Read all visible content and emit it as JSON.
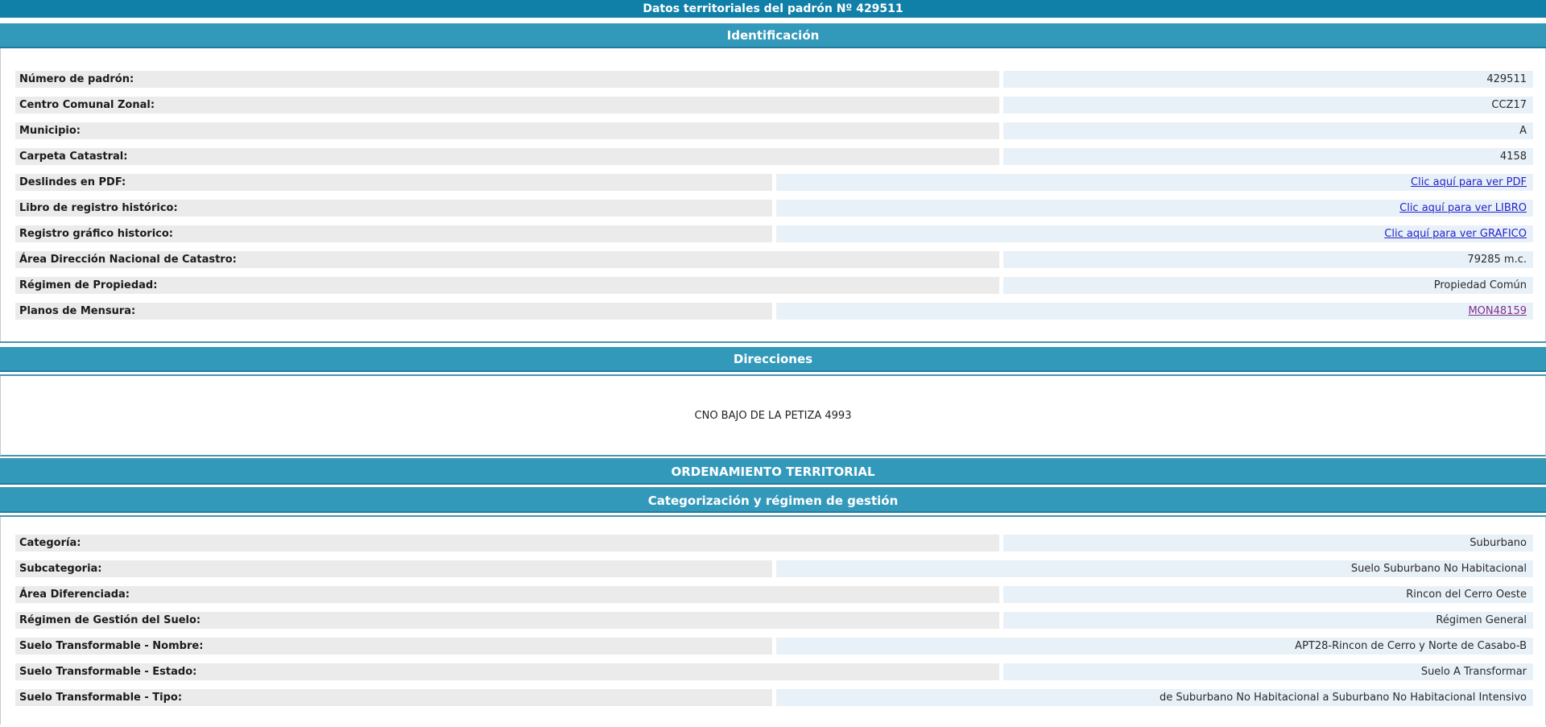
{
  "page": {
    "title": "Datos territoriales del padrón Nº 429511"
  },
  "sections": {
    "identificacion": {
      "header": "Identificación",
      "rows": [
        {
          "label": "Número de padrón:",
          "value": "429511",
          "type": "text"
        },
        {
          "label": "Centro Comunal Zonal:",
          "value": "CCZ17",
          "type": "text"
        },
        {
          "label": "Municipio:",
          "value": "A",
          "type": "text"
        },
        {
          "label": "Carpeta Catastral:",
          "value": "4158",
          "type": "text"
        },
        {
          "label": "Deslindes en PDF:",
          "value": "Clic aquí para ver PDF",
          "type": "link"
        },
        {
          "label": "Libro de registro histórico:",
          "value": "Clic aquí para ver LIBRO",
          "type": "link"
        },
        {
          "label": "Registro gráfico historico:",
          "value": "Clic aquí para ver GRAFICO",
          "type": "link"
        },
        {
          "label": "Área Dirección Nacional de Catastro:",
          "value": "79285 m.c.",
          "type": "text"
        },
        {
          "label": "Régimen de Propiedad:",
          "value": "Propiedad Común",
          "type": "text"
        },
        {
          "label": "Planos de Mensura:",
          "value": "MON48159",
          "type": "visited-link"
        }
      ]
    },
    "direcciones": {
      "header": "Direcciones",
      "address": "CNO BAJO DE LA PETIZA 4993"
    },
    "ordenamiento": {
      "header": "ORDENAMIENTO TERRITORIAL",
      "subheader": "Categorización y régimen de gestión",
      "rows": [
        {
          "label": "Categoría:",
          "value": "Suburbano",
          "type": "text"
        },
        {
          "label": "Subcategoria:",
          "value": "Suelo Suburbano No Habitacional",
          "type": "text"
        },
        {
          "label": "Área Diferenciada:",
          "value": "Rincon del Cerro Oeste",
          "type": "text"
        },
        {
          "label": "Régimen de Gestión del Suelo:",
          "value": "Régimen General",
          "type": "text"
        },
        {
          "label": "Suelo Transformable - Nombre:",
          "value": "APT28-Rincon de Cerro y Norte de Casabo-B",
          "type": "text"
        },
        {
          "label": "Suelo Transformable - Estado:",
          "value": "Suelo A Transformar",
          "type": "text"
        },
        {
          "label": "Suelo Transformable - Tipo:",
          "value": "de Suburbano No Habitacional a Suburbano No Habitacional Intensivo",
          "type": "text"
        }
      ]
    }
  },
  "colors": {
    "title_bar": "#1180a8",
    "section_bar": "#3399bb",
    "label_bg": "#ebebeb",
    "value_bg": "#e9f1f8",
    "link": "#2323cc",
    "visited_link": "#80308c",
    "rule": "#4695b2"
  }
}
